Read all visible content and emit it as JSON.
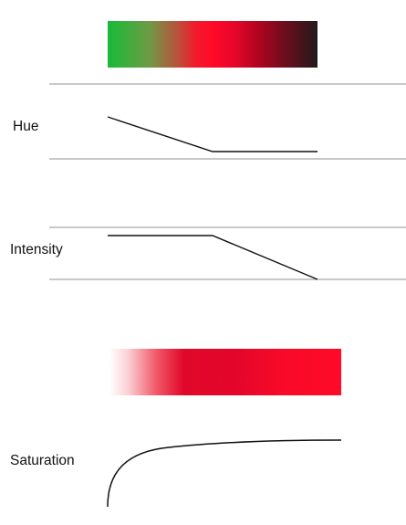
{
  "labels": {
    "hue": "Hue",
    "intensity": "Intensity",
    "saturation": "Saturation"
  },
  "colors": {
    "green": "#1db33c",
    "red": "#ff0a28",
    "dark_red": "#8c0018",
    "near_black": "#201a1b",
    "white": "#ffffff",
    "axis_gray": "#a8a8a8",
    "curve_black": "#111111"
  }
}
